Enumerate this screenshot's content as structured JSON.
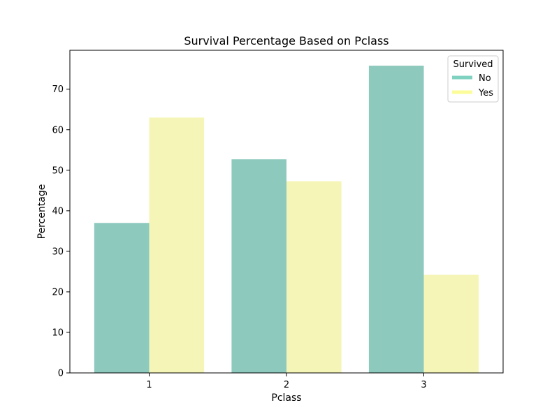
{
  "chart_data": {
    "type": "bar",
    "title": "Survival Percentage Based on Pclass",
    "xlabel": "Pclass",
    "ylabel": "Percentage",
    "categories": [
      "1",
      "2",
      "3"
    ],
    "series": [
      {
        "name": "No",
        "color": "#8dc9bd",
        "values": [
          37.0,
          52.7,
          75.8
        ]
      },
      {
        "name": "Yes",
        "color": "#f5f5b8",
        "values": [
          63.0,
          47.3,
          24.2
        ]
      }
    ],
    "ylim": [
      0,
      79.6
    ],
    "yticks": [
      0,
      10,
      20,
      30,
      40,
      50,
      60,
      70
    ],
    "grid": false,
    "legend": {
      "title": "Survived",
      "placement": "upper right",
      "swatch_colors": [
        "#7fd1c0",
        "#fcfc9a"
      ]
    }
  }
}
